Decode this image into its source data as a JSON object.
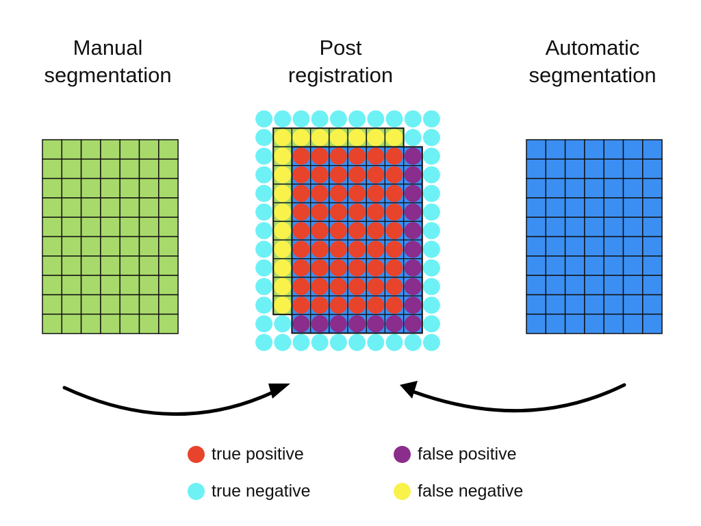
{
  "titles": {
    "manual": [
      "Manual",
      "segmentation"
    ],
    "post": [
      "Post",
      "registration"
    ],
    "automatic": [
      "Automatic",
      "segmentation"
    ]
  },
  "grids": {
    "manual": {
      "rows": 10,
      "cols": 7,
      "color": "#a8da6b"
    },
    "automatic": {
      "rows": 10,
      "cols": 7,
      "color": "#3b8ff3"
    }
  },
  "registration": {
    "rows": 13,
    "cols": 10,
    "manual_region": {
      "row_start": 1,
      "row_end": 10,
      "col_start": 1,
      "col_end": 7
    },
    "automatic_region": {
      "row_start": 2,
      "row_end": 11,
      "col_start": 2,
      "col_end": 8
    }
  },
  "colors": {
    "true_positive": "#e8432b",
    "false_positive": "#8a2d8c",
    "true_negative": "#6df1f5",
    "false_negative": "#f8f24a",
    "manual_fill": "#a8da6b",
    "automatic_fill": "#3b8ff3",
    "arrow": "#000000"
  },
  "legend": {
    "true_positive": "true positive",
    "false_positive": "false positive",
    "true_negative": "true negative",
    "false_negative": "false negative"
  }
}
